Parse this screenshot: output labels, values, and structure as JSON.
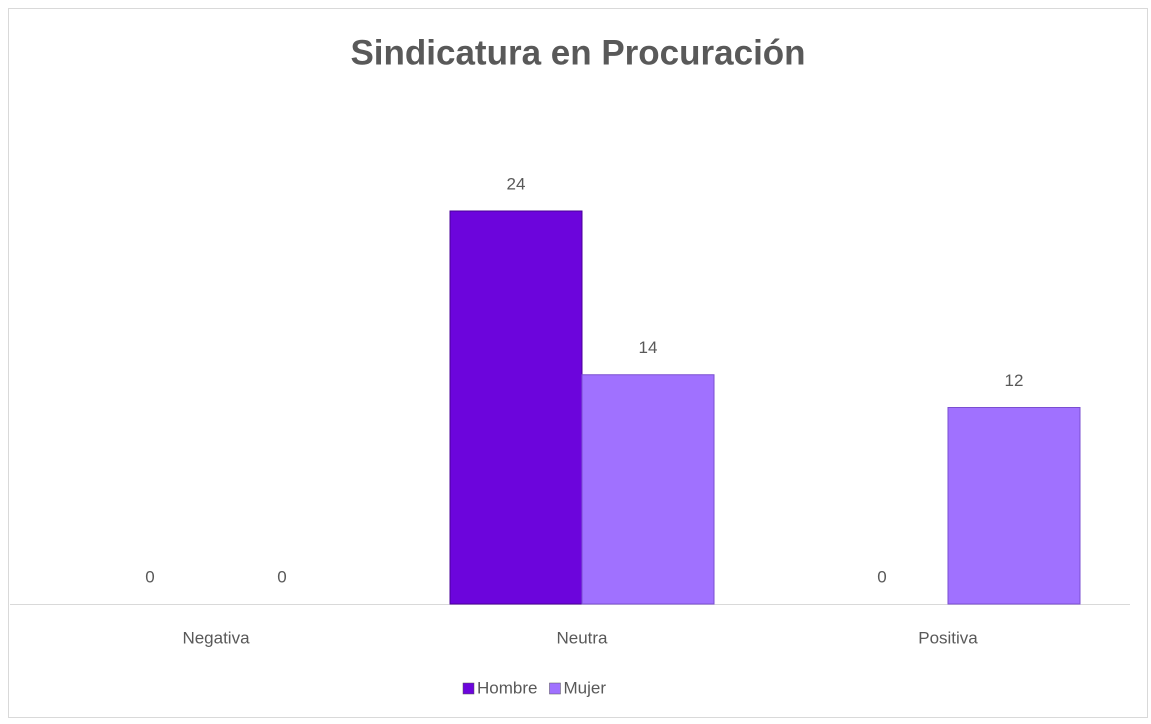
{
  "chart_data": {
    "type": "bar",
    "title": "Sindicatura en Procuración",
    "categories": [
      "Negativa",
      "Neutra",
      "Positiva"
    ],
    "series": [
      {
        "name": "Hombre",
        "color": "#6c05dc",
        "values": [
          0,
          24,
          0
        ]
      },
      {
        "name": "Mujer",
        "color": "#a071ff",
        "values": [
          0,
          14,
          12
        ]
      }
    ],
    "legend": "bottom"
  }
}
